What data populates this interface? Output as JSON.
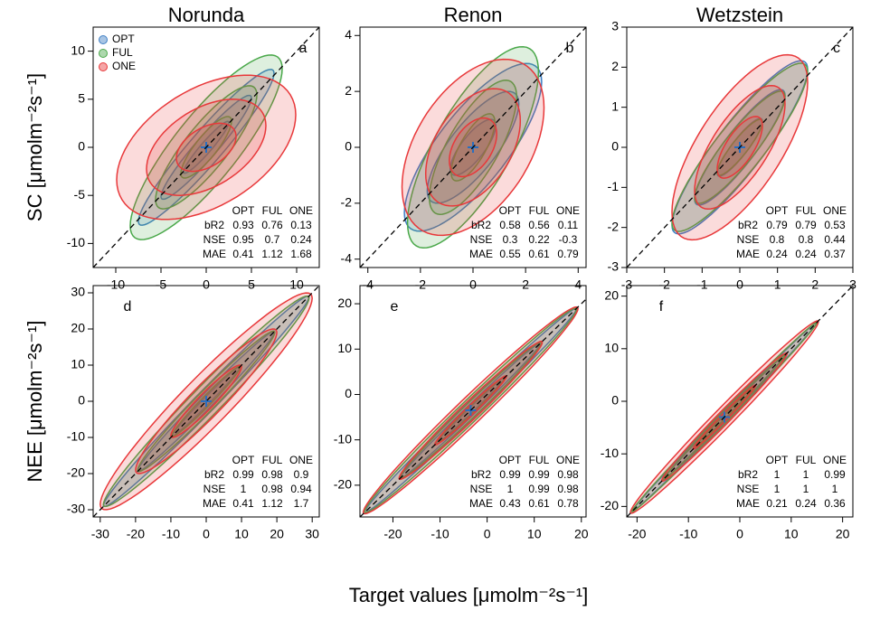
{
  "x_label": "Target values [μmolm⁻²s⁻¹]",
  "chart_data": [
    {
      "type": "ellipse",
      "title": "Norunda",
      "panel": "a",
      "y_label": "SC [μmolm⁻²s⁻¹]",
      "legend": "topleft",
      "xlim": [
        -12.5,
        12.5
      ],
      "ylim": [
        -12.5,
        12.5
      ],
      "xticks": [
        -10,
        -5,
        0,
        5,
        10
      ],
      "yticks": [
        -10,
        -5,
        0,
        5,
        10
      ],
      "series": [
        {
          "name": "OPT",
          "color": "#3f7fc4",
          "x_mean": 0,
          "y_mean": 0,
          "x_sd": 2.5,
          "y_sd": 2.7,
          "corr": 0.95
        },
        {
          "name": "FUL",
          "color": "#4aa84a",
          "x_mean": 0,
          "y_mean": 0,
          "x_sd": 2.8,
          "y_sd": 3.2,
          "corr": 0.85
        },
        {
          "name": "ONE",
          "color": "#e8383a",
          "x_mean": 0,
          "y_mean": 0,
          "x_sd": 3.3,
          "y_sd": 2.5,
          "corr": 0.45
        }
      ],
      "stats": {
        "columns": [
          "OPT",
          "FUL",
          "ONE"
        ],
        "rows": [
          {
            "name": "bR2",
            "values": [
              "0.93",
              "0.76",
              "0.13"
            ]
          },
          {
            "name": "NSE",
            "values": [
              "0.95",
              "0.7",
              "0.24"
            ]
          },
          {
            "name": "MAE",
            "values": [
              "0.41",
              "1.12",
              "1.68"
            ]
          }
        ]
      }
    },
    {
      "type": "ellipse",
      "title": "Renon",
      "panel": "b",
      "xlim": [
        -4.3,
        4.3
      ],
      "ylim": [
        -4.3,
        4.3
      ],
      "xticks": [
        -4,
        -2,
        0,
        2,
        4
      ],
      "yticks": [
        -4,
        -2,
        0,
        2,
        4
      ],
      "series": [
        {
          "name": "OPT",
          "color": "#3f7fc4",
          "x_mean": 0,
          "y_mean": 0,
          "x_sd": 0.87,
          "y_sd": 1.0,
          "corr": 0.78
        },
        {
          "name": "FUL",
          "color": "#4aa84a",
          "x_mean": 0,
          "y_mean": 0,
          "x_sd": 0.83,
          "y_sd": 1.2,
          "corr": 0.75
        },
        {
          "name": "ONE",
          "color": "#e8383a",
          "x_mean": 0,
          "y_mean": 0,
          "x_sd": 0.9,
          "y_sd": 1.05,
          "corr": 0.45
        }
      ],
      "stats": {
        "columns": [
          "OPT",
          "FUL",
          "ONE"
        ],
        "rows": [
          {
            "name": "bR2",
            "values": [
              "0.58",
              "0.56",
              "0.11"
            ]
          },
          {
            "name": "NSE",
            "values": [
              "0.3",
              "0.22",
              "-0.3"
            ]
          },
          {
            "name": "MAE",
            "values": [
              "0.55",
              "0.61",
              "0.79"
            ]
          }
        ]
      }
    },
    {
      "type": "ellipse",
      "title": "Wetzstein",
      "panel": "c",
      "xlim": [
        -3,
        3
      ],
      "ylim": [
        -3,
        3
      ],
      "xticks": [
        -3,
        -2,
        -1,
        0,
        1,
        2,
        3
      ],
      "yticks": [
        -3,
        -2,
        -1,
        0,
        1,
        2,
        3
      ],
      "series": [
        {
          "name": "OPT",
          "color": "#3f7fc4",
          "x_mean": 0,
          "y_mean": 0,
          "x_sd": 0.6,
          "y_sd": 0.72,
          "corr": 0.9
        },
        {
          "name": "FUL",
          "color": "#4aa84a",
          "x_mean": 0,
          "y_mean": 0,
          "x_sd": 0.6,
          "y_sd": 0.7,
          "corr": 0.9
        },
        {
          "name": "ONE",
          "color": "#e8383a",
          "x_mean": 0,
          "y_mean": 0,
          "x_sd": 0.6,
          "y_sd": 0.77,
          "corr": 0.7
        }
      ],
      "stats": {
        "columns": [
          "OPT",
          "FUL",
          "ONE"
        ],
        "rows": [
          {
            "name": "bR2",
            "values": [
              "0.79",
              "0.79",
              "0.53"
            ]
          },
          {
            "name": "NSE",
            "values": [
              "0.8",
              "0.8",
              "0.44"
            ]
          },
          {
            "name": "MAE",
            "values": [
              "0.24",
              "0.24",
              "0.37"
            ]
          }
        ]
      }
    },
    {
      "type": "ellipse",
      "panel": "d",
      "y_label": "NEE [μmolm⁻²s⁻¹]",
      "xlim": [
        -32,
        32
      ],
      "ylim": [
        -32,
        32
      ],
      "xticks": [
        -30,
        -20,
        -10,
        0,
        10,
        20,
        30
      ],
      "yticks": [
        -30,
        -20,
        -10,
        0,
        10,
        20,
        30
      ],
      "series": [
        {
          "name": "OPT",
          "color": "#3f7fc4",
          "x_mean": 0,
          "y_mean": 0,
          "x_sd": 9.7,
          "y_sd": 9.7,
          "corr": 0.99
        },
        {
          "name": "FUL",
          "color": "#4aa84a",
          "x_mean": 0,
          "y_mean": 0,
          "x_sd": 9.7,
          "y_sd": 9.7,
          "corr": 0.98
        },
        {
          "name": "ONE",
          "color": "#e8383a",
          "x_mean": 0,
          "y_mean": 0,
          "x_sd": 10,
          "y_sd": 10,
          "corr": 0.95
        }
      ],
      "stats": {
        "columns": [
          "OPT",
          "FUL",
          "ONE"
        ],
        "rows": [
          {
            "name": "bR2",
            "values": [
              "0.99",
              "0.98",
              "0.9"
            ]
          },
          {
            "name": "NSE",
            "values": [
              "1",
              "0.98",
              "0.94"
            ]
          },
          {
            "name": "MAE",
            "values": [
              "0.41",
              "1.12",
              "1.7"
            ]
          }
        ]
      }
    },
    {
      "type": "ellipse",
      "panel": "e",
      "xlim": [
        -27,
        21
      ],
      "ylim": [
        -27,
        24
      ],
      "xticks": [
        -20,
        -10,
        0,
        10,
        20
      ],
      "yticks": [
        -20,
        -10,
        0,
        10,
        20
      ],
      "series": [
        {
          "name": "OPT",
          "color": "#3f7fc4",
          "x_mean": -3.5,
          "y_mean": -3.5,
          "x_sd": 7.5,
          "y_sd": 7.5,
          "corr": 0.995
        },
        {
          "name": "FUL",
          "color": "#4aa84a",
          "x_mean": -3.5,
          "y_mean": -3.5,
          "x_sd": 7.5,
          "y_sd": 7.5,
          "corr": 0.99
        },
        {
          "name": "ONE",
          "color": "#e8383a",
          "x_mean": -3.5,
          "y_mean": -3.5,
          "x_sd": 7.6,
          "y_sd": 7.6,
          "corr": 0.985
        }
      ],
      "stats": {
        "columns": [
          "OPT",
          "FUL",
          "ONE"
        ],
        "rows": [
          {
            "name": "bR2",
            "values": [
              "0.99",
              "0.99",
              "0.98"
            ]
          },
          {
            "name": "NSE",
            "values": [
              "1",
              "0.99",
              "0.98"
            ]
          },
          {
            "name": "MAE",
            "values": [
              "0.43",
              "0.61",
              "0.78"
            ]
          }
        ]
      }
    },
    {
      "type": "ellipse",
      "panel": "f",
      "xlim": [
        -22,
        22
      ],
      "ylim": [
        -22,
        22
      ],
      "xticks": [
        -20,
        -10,
        0,
        10,
        20
      ],
      "yticks": [
        -20,
        -10,
        0,
        10,
        20
      ],
      "series": [
        {
          "name": "OPT",
          "color": "#3f7fc4",
          "x_mean": -3,
          "y_mean": -3,
          "x_sd": 6,
          "y_sd": 6,
          "corr": 0.998
        },
        {
          "name": "FUL",
          "color": "#4aa84a",
          "x_mean": -3,
          "y_mean": -3,
          "x_sd": 6,
          "y_sd": 6,
          "corr": 0.997
        },
        {
          "name": "ONE",
          "color": "#e8383a",
          "x_mean": -3,
          "y_mean": -3,
          "x_sd": 6.1,
          "y_sd": 6.1,
          "corr": 0.99
        }
      ],
      "stats": {
        "columns": [
          "OPT",
          "FUL",
          "ONE"
        ],
        "rows": [
          {
            "name": "bR2",
            "values": [
              "1",
              "1",
              "0.99"
            ]
          },
          {
            "name": "NSE",
            "values": [
              "1",
              "1",
              "1"
            ]
          },
          {
            "name": "MAE",
            "values": [
              "0.21",
              "0.24",
              "0.36"
            ]
          }
        ]
      }
    }
  ]
}
